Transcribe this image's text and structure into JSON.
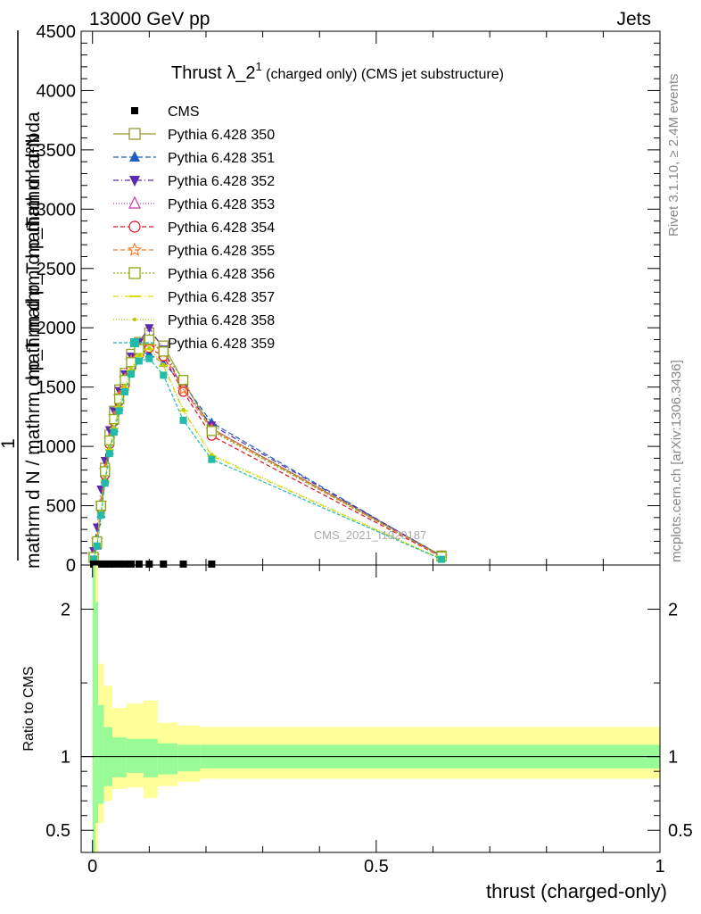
{
  "header": {
    "left": "13000 GeV pp",
    "right": "Jets"
  },
  "side_labels": {
    "rivet": "Rivet 3.1.10, ≥ 2.4M events",
    "mcplots": "mcplots.cern.ch [arXiv:1306.3436]"
  },
  "watermark": "CMS_2021_I1920187",
  "title": {
    "main": "Thrust λ_2",
    "sup": "1",
    "rest": " (charged only) (CMS jet substructure)"
  },
  "ylabel_main": {
    "numerator_one": "1",
    "numerator": "mathrm d²N",
    "overlay": "mathrm d p_T mathrm d lambda",
    "denominator": "mathrm d N / mathrm d p_T mathrm d p_T"
  },
  "ratio_ylabel": "Ratio to CMS",
  "xlabel": "thrust (charged-only)",
  "colors": {
    "band_inner": "#98fb98",
    "band_outer": "#ffff99",
    "data": "#000000"
  },
  "chart_data": {
    "type": "line",
    "xlim": [
      -0.02,
      1.0
    ],
    "ylim_main": [
      0,
      4500
    ],
    "ylim_ratio": [
      0.35,
      2.3
    ],
    "x_ticks": [
      0,
      0.5,
      1
    ],
    "x_tick_labels": [
      "0",
      "0.5",
      "1"
    ],
    "y_ticks_main": [
      0,
      500,
      1000,
      1500,
      2000,
      2500,
      3000,
      3500,
      4000,
      4500
    ],
    "y_tick_labels_main": [
      "0",
      "500",
      "1000",
      "1500",
      "2000",
      "2500",
      "3000",
      "3500",
      "4000",
      "4500"
    ],
    "y_ticks_ratio": [
      0.5,
      1,
      2
    ],
    "y_tick_labels_ratio": [
      "0.5",
      "1",
      "2"
    ],
    "x": [
      0.002,
      0.008,
      0.015,
      0.022,
      0.03,
      0.038,
      0.047,
      0.057,
      0.068,
      0.082,
      0.1,
      0.125,
      0.16,
      0.21,
      0.615
    ],
    "cms": {
      "name": "CMS",
      "x": [
        0.002,
        0.008,
        0.015,
        0.022,
        0.03,
        0.038,
        0.047,
        0.057,
        0.068,
        0.082,
        0.1,
        0.125,
        0.16,
        0.21
      ],
      "y": [
        8,
        8,
        8,
        8,
        8,
        8,
        8,
        8,
        8,
        8,
        8,
        8,
        8,
        8
      ]
    },
    "series": [
      {
        "name": "Pythia 6.428 350",
        "color": "#999933",
        "marker": "square-open",
        "dash": "",
        "y": [
          60,
          180,
          500,
          820,
          1100,
          1300,
          1480,
          1620,
          1780,
          1880,
          1960,
          1850,
          1550,
          1150,
          80
        ]
      },
      {
        "name": "Pythia 6.428 351",
        "color": "#1f5fbf",
        "marker": "triangle-up",
        "dash": "6,3",
        "y": [
          50,
          160,
          430,
          720,
          960,
          1150,
          1330,
          1500,
          1680,
          1800,
          1780,
          1700,
          1530,
          1200,
          70
        ]
      },
      {
        "name": "Pythia 6.428 352",
        "color": "#5a2aaf",
        "marker": "triangle-down",
        "dash": "6,3,1,3",
        "y": [
          120,
          320,
          640,
          880,
          1140,
          1300,
          1470,
          1610,
          1760,
          1880,
          2000,
          1820,
          1480,
          1180,
          75
        ]
      },
      {
        "name": "Pythia 6.428 353",
        "color": "#cc33aa",
        "marker": "triangle-open",
        "dash": "1,2",
        "y": [
          70,
          200,
          500,
          780,
          1050,
          1220,
          1400,
          1550,
          1700,
          1800,
          1900,
          1780,
          1500,
          1150,
          72
        ]
      },
      {
        "name": "Pythia 6.428 354",
        "color": "#dd1122",
        "marker": "circle-open",
        "dash": "5,3",
        "y": [
          65,
          190,
          480,
          760,
          1020,
          1210,
          1380,
          1520,
          1660,
          1770,
          1830,
          1760,
          1460,
          1090,
          68
        ]
      },
      {
        "name": "Pythia 6.428 355",
        "color": "#ff7722",
        "marker": "star-open",
        "dash": "5,3",
        "y": [
          75,
          210,
          520,
          800,
          1060,
          1250,
          1420,
          1570,
          1720,
          1830,
          1880,
          1790,
          1480,
          1140,
          70
        ]
      },
      {
        "name": "Pythia 6.428 356",
        "color": "#88aa11",
        "marker": "square-open",
        "dash": "2,2",
        "y": [
          68,
          200,
          500,
          790,
          1050,
          1230,
          1400,
          1560,
          1710,
          1820,
          1900,
          1800,
          1560,
          1130,
          72
        ]
      },
      {
        "name": "Pythia 6.428 357",
        "color": "#dddd00",
        "marker": "dash",
        "dash": "6,3,1,3",
        "y": [
          55,
          170,
          440,
          710,
          970,
          1150,
          1330,
          1490,
          1640,
          1760,
          1820,
          1680,
          1300,
          920,
          50
        ]
      },
      {
        "name": "Pythia 6.428 358",
        "color": "#bbcc00",
        "marker": "dot",
        "dash": "1,2",
        "y": [
          58,
          175,
          450,
          720,
          980,
          1160,
          1340,
          1500,
          1650,
          1770,
          1830,
          1690,
          1310,
          930,
          52
        ]
      },
      {
        "name": "Pythia 6.428 359",
        "color": "#22bbaa",
        "marker": "square",
        "dash": "4,2",
        "y": [
          50,
          160,
          420,
          690,
          940,
          1120,
          1300,
          1460,
          1610,
          1720,
          1740,
          1600,
          1220,
          890,
          48
        ]
      }
    ],
    "ratio_band": {
      "edges": [
        0.0,
        0.005,
        0.01,
        0.02,
        0.035,
        0.06,
        0.09,
        0.115,
        0.15,
        0.19,
        1.0
      ],
      "inner_lo": [
        0.35,
        0.55,
        0.68,
        0.8,
        0.86,
        0.89,
        0.86,
        0.88,
        0.9,
        0.92
      ],
      "inner_hi": [
        2.3,
        2.05,
        1.35,
        1.2,
        1.13,
        1.12,
        1.12,
        1.09,
        1.08,
        1.08
      ],
      "outer_lo": [
        0.35,
        0.35,
        0.55,
        0.7,
        0.78,
        0.79,
        0.72,
        0.8,
        0.83,
        0.85
      ],
      "outer_hi": [
        2.3,
        2.3,
        1.63,
        1.48,
        1.33,
        1.36,
        1.38,
        1.23,
        1.21,
        1.2
      ]
    }
  }
}
